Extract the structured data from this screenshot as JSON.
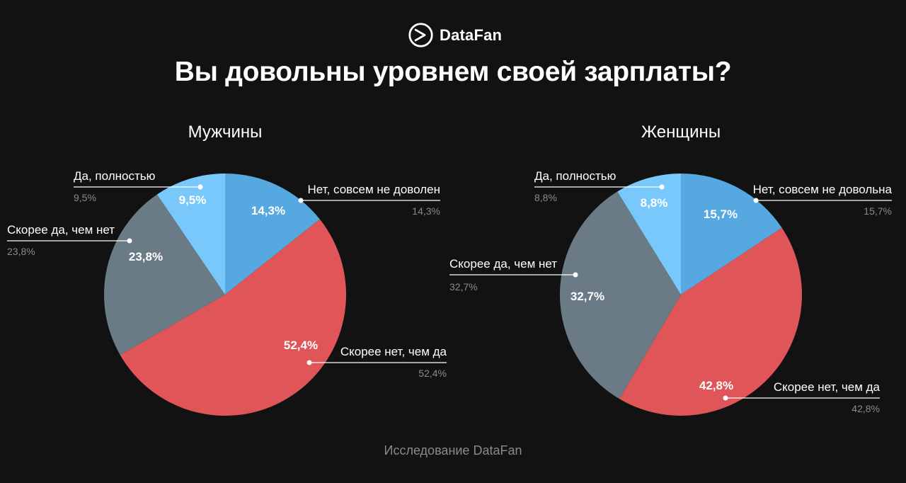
{
  "brand": {
    "name": "DataFan",
    "icon": "play-arrow-logo-icon"
  },
  "page": {
    "title": "Вы довольны уровнем своей зарплаты?",
    "footer": "Исследование DataFan"
  },
  "colors": {
    "background": "#121212",
    "slice_no_at_all": "#56a9e0",
    "slice_rather_no": "#e05558",
    "slice_rather_yes": "#6a7b86",
    "slice_yes_fully": "#78c8fb",
    "label_primary": "#ffffff",
    "label_secondary": "#8a8a8a"
  },
  "chart_data": [
    {
      "type": "pie",
      "title": "Мужчины",
      "categories": [
        "Нет, совсем не доволен",
        "Скорее нет, чем да",
        "Скорее да, чем нет",
        "Да, полностью"
      ],
      "values": [
        14.3,
        52.4,
        23.8,
        9.5
      ],
      "value_labels": [
        "14,3%",
        "52,4%",
        "23,8%",
        "9,5%"
      ],
      "start": "12 o'clock",
      "direction": "clockwise"
    },
    {
      "type": "pie",
      "title": "Женщины",
      "categories": [
        "Нет, совсем не довольна",
        "Скорее нет, чем да",
        "Скорее да, чем нет",
        "Да, полностью"
      ],
      "values": [
        15.7,
        42.8,
        32.7,
        8.8
      ],
      "value_labels": [
        "15,7%",
        "42,8%",
        "32,7%",
        "8,8%"
      ],
      "start": "12 o'clock",
      "direction": "clockwise"
    }
  ]
}
